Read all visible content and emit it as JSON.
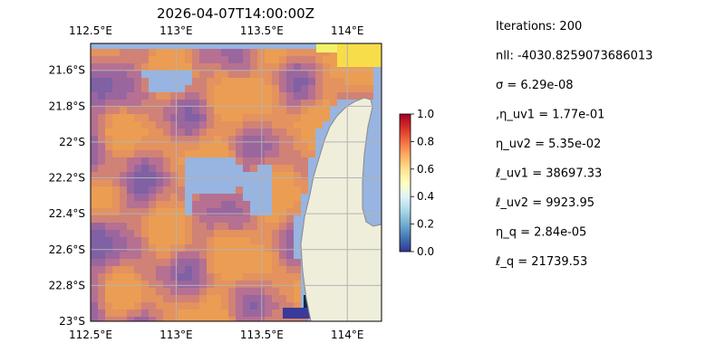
{
  "chart_data": {
    "type": "heatmap",
    "title": "2026-04-07T14:00:00Z",
    "x_tick_labels_top": [
      "112.5°E",
      "113°E",
      "113.5°E",
      "114°E"
    ],
    "x_tick_values_top": [
      112.5,
      113.0,
      113.5,
      114.0
    ],
    "x_tick_labels_bottom": [
      "112.5°E",
      "113°E",
      "113.5°E",
      "114°E"
    ],
    "x_tick_values_bottom": [
      112.5,
      113.0,
      113.5,
      114.0
    ],
    "y_tick_labels": [
      "21.6°S",
      "21.8°S",
      "22°S",
      "22.2°S",
      "22.4°S",
      "22.6°S",
      "22.8°S",
      "23°S"
    ],
    "y_tick_values": [
      -21.6,
      -21.8,
      -22.0,
      -22.2,
      -22.4,
      -22.6,
      -22.8,
      -23.0
    ],
    "lon_range": [
      112.5,
      114.2
    ],
    "lat_range": [
      -23.0,
      -21.45
    ],
    "grid": true,
    "colorbar": {
      "range": [
        0.0,
        1.0
      ],
      "tick_labels": [
        "0.0",
        "0.2",
        "0.4",
        "0.6",
        "0.8",
        "1.0"
      ],
      "tick_values": [
        0.0,
        0.2,
        0.4,
        0.6,
        0.8,
        1.0
      ],
      "colormap": "RdYlBu_r"
    },
    "colors": {
      "ocean": "#98b4e0",
      "land": "#efeedb",
      "coast": "#8a8a8a",
      "grid": "#b3b3b3"
    }
  },
  "params": [
    "Iterations: 200",
    "nll: -4030.8259073686013",
    "σ = 6.29e-08",
    ",η_uv1 = 1.77e-01",
    "η_uv2 = 5.35e-02",
    "ℓ_uv1 = 38697.33",
    "ℓ_uv2 = 9923.95",
    "η_q = 2.84e-05",
    "ℓ_q = 21739.53"
  ]
}
